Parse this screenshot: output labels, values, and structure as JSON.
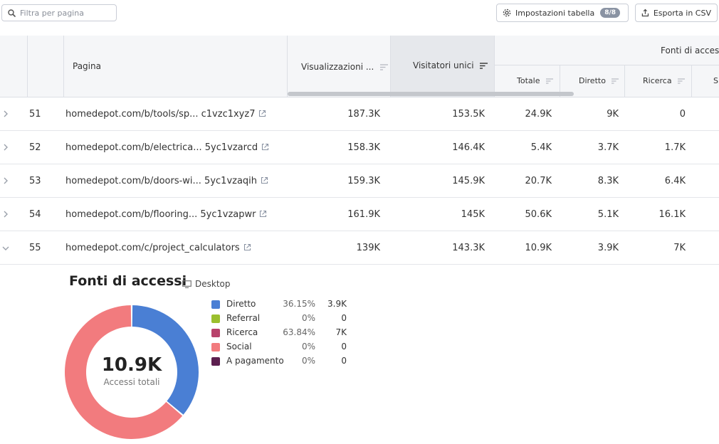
{
  "toolbar": {
    "search_placeholder": "Filtra per pagina",
    "settings_label": "Impostazioni tabella",
    "settings_badge": "8/8",
    "export_label": "Esporta in CSV"
  },
  "table": {
    "headers": {
      "page": "Pagina",
      "views": "Visualizzazioni ...",
      "unique_visitors": "Visitatori unici",
      "traffic_sources": "Fonti di acces",
      "total": "Totale",
      "direct": "Diretto",
      "search": "Ricerca",
      "social_partial": "S"
    },
    "rows": [
      {
        "index": "51",
        "page": "homedepot.com/b/tools/sp... c1vzc1xyz7",
        "views": "187.3K",
        "unique": "153.5K",
        "total": "24.9K",
        "direct": "9K",
        "search": "0",
        "expanded": false
      },
      {
        "index": "52",
        "page": "homedepot.com/b/electrica... 5yc1vzarcd",
        "views": "158.3K",
        "unique": "146.4K",
        "total": "5.4K",
        "direct": "3.7K",
        "search": "1.7K",
        "expanded": false
      },
      {
        "index": "53",
        "page": "homedepot.com/b/doors-wi... 5yc1vzaqih",
        "views": "159.3K",
        "unique": "145.9K",
        "total": "20.7K",
        "direct": "8.3K",
        "search": "6.4K",
        "expanded": false
      },
      {
        "index": "54",
        "page": "homedepot.com/b/flooring... 5yc1vzapwr",
        "views": "161.9K",
        "unique": "145K",
        "total": "50.6K",
        "direct": "5.1K",
        "search": "16.1K",
        "expanded": false
      },
      {
        "index": "55",
        "page": "homedepot.com/c/project_calculators",
        "views": "139K",
        "unique": "143.3K",
        "total": "10.9K",
        "direct": "3.9K",
        "search": "7K",
        "expanded": true
      }
    ]
  },
  "panel": {
    "title": "Fonti di accessi",
    "device": "Desktop",
    "total_value": "10.9K",
    "total_caption": "Accessi totali",
    "legend": [
      {
        "name": "Diretto",
        "pct": "36.15%",
        "value": "3.9K",
        "color": "#4a7fd4"
      },
      {
        "name": "Referral",
        "pct": "0%",
        "value": "0",
        "color": "#9bbf2e"
      },
      {
        "name": "Ricerca",
        "pct": "63.84%",
        "value": "7K",
        "color": "#b8426b"
      },
      {
        "name": "Social",
        "pct": "0%",
        "value": "0",
        "color": "#f27b7e"
      },
      {
        "name": "A pagamento",
        "pct": "0%",
        "value": "0",
        "color": "#5c1f4f"
      }
    ],
    "donut_fractions": [
      {
        "label": "Diretto",
        "fraction": 0.3615,
        "color": "#4a7fd4"
      },
      {
        "label": "Ricerca",
        "fraction": 0.6384,
        "color": "#f27b7e"
      }
    ]
  }
}
